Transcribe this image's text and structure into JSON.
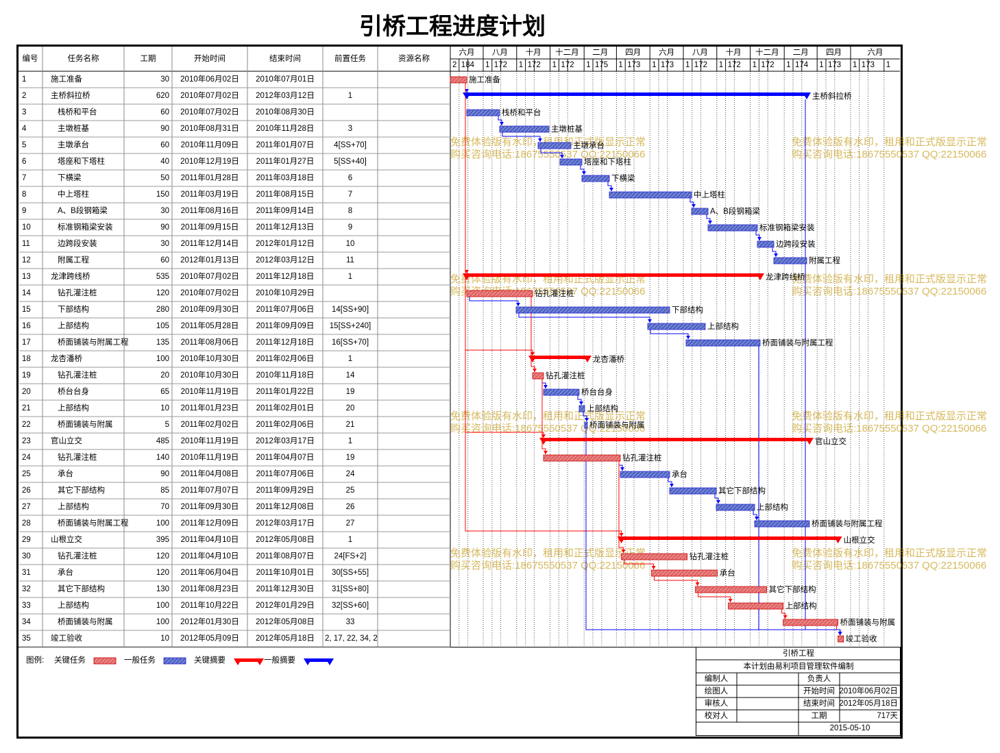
{
  "chart_data": {
    "type": "gantt",
    "title": "引桥工程进度计划",
    "columns": [
      "编号",
      "任务名称",
      "工期",
      "开始时间",
      "结束时间",
      "前置任务",
      "资源名称"
    ],
    "month_ticks": [
      {
        "value": "2010-06-02",
        "label": "六月"
      },
      {
        "value": "2010-08-01",
        "label": "八月"
      },
      {
        "value": "2010-10-01",
        "label": "十月"
      },
      {
        "value": "2010-12-01",
        "label": "十二月"
      },
      {
        "value": "2011-02-01",
        "label": "二月"
      },
      {
        "value": "2011-04-01",
        "label": "四月"
      },
      {
        "value": "2011-06-01",
        "label": "六月"
      },
      {
        "value": "2011-08-01",
        "label": "八月"
      },
      {
        "value": "2011-10-01",
        "label": "十月"
      },
      {
        "value": "2011-12-01",
        "label": "十二月"
      },
      {
        "value": "2012-02-01",
        "label": "二月"
      },
      {
        "value": "2012-04-01",
        "label": "四月"
      },
      {
        "value": "2012-06-01",
        "label": "六月"
      }
    ],
    "day_ticks": [
      {
        "value": "2010-06-02",
        "label": "2"
      },
      {
        "value": "2010-06-18",
        "label": "18"
      },
      {
        "value": "2010-07-04",
        "label": "4"
      },
      {
        "value": "2010-08-01",
        "label": "1"
      },
      {
        "value": "2010-08-17",
        "label": "17"
      },
      {
        "value": "2010-09-02",
        "label": "2"
      },
      {
        "value": "2010-10-01",
        "label": "1"
      },
      {
        "value": "2010-10-17",
        "label": "17"
      },
      {
        "value": "2010-11-02",
        "label": "2"
      },
      {
        "value": "2010-12-01",
        "label": "1"
      },
      {
        "value": "2010-12-17",
        "label": "17"
      },
      {
        "value": "2011-01-02",
        "label": "2"
      },
      {
        "value": "2011-02-01",
        "label": "1"
      },
      {
        "value": "2011-02-17",
        "label": "17"
      },
      {
        "value": "2011-03-05",
        "label": "5"
      },
      {
        "value": "2011-04-01",
        "label": "1"
      },
      {
        "value": "2011-04-17",
        "label": "17"
      },
      {
        "value": "2011-05-03",
        "label": "3"
      },
      {
        "value": "2011-06-01",
        "label": "1"
      },
      {
        "value": "2011-06-17",
        "label": "17"
      },
      {
        "value": "2011-07-03",
        "label": "3"
      },
      {
        "value": "2011-08-01",
        "label": "1"
      },
      {
        "value": "2011-08-17",
        "label": "17"
      },
      {
        "value": "2011-09-02",
        "label": "2"
      },
      {
        "value": "2011-10-01",
        "label": "1"
      },
      {
        "value": "2011-10-17",
        "label": "17"
      },
      {
        "value": "2011-11-02",
        "label": "2"
      },
      {
        "value": "2011-12-01",
        "label": "1"
      },
      {
        "value": "2011-12-17",
        "label": "17"
      },
      {
        "value": "2012-01-02",
        "label": "2"
      },
      {
        "value": "2012-02-01",
        "label": "1"
      },
      {
        "value": "2012-02-17",
        "label": "17"
      },
      {
        "value": "2012-03-04",
        "label": "4"
      },
      {
        "value": "2012-04-01",
        "label": "1"
      },
      {
        "value": "2012-04-17",
        "label": "17"
      },
      {
        "value": "2012-05-03",
        "label": "3"
      },
      {
        "value": "2012-06-01",
        "label": "1"
      },
      {
        "value": "2012-06-17",
        "label": "17"
      },
      {
        "value": "2012-07-03",
        "label": "3"
      },
      {
        "value": "2012-08-01",
        "label": "1"
      }
    ],
    "tasks": [
      {
        "id": 1,
        "name": "施工准备",
        "duration": 30,
        "start": "2010年06月02日",
        "end": "2010年07月01日",
        "critical": true,
        "summary": false,
        "level": 1
      },
      {
        "id": 2,
        "name": "主桥斜拉桥",
        "duration": 620,
        "start": "2010年07月02日",
        "end": "2012年03月12日",
        "pred": "1",
        "critical": false,
        "summary": true,
        "level": 1
      },
      {
        "id": 3,
        "name": "栈桥和平台",
        "duration": 60,
        "start": "2010年07月02日",
        "end": "2010年08月30日",
        "critical": false,
        "summary": false,
        "level": 2
      },
      {
        "id": 4,
        "name": "主墩桩基",
        "duration": 90,
        "start": "2010年08月31日",
        "end": "2010年11月28日",
        "pred": "3",
        "critical": false,
        "summary": false,
        "level": 2
      },
      {
        "id": 5,
        "name": "主墩承台",
        "duration": 60,
        "start": "2010年11月09日",
        "end": "2011年01月07日",
        "pred": "4[SS+70]",
        "critical": false,
        "summary": false,
        "level": 2
      },
      {
        "id": 6,
        "name": "塔座和下塔柱",
        "duration": 40,
        "start": "2010年12月19日",
        "end": "2011年01月27日",
        "pred": "5[SS+40]",
        "critical": false,
        "summary": false,
        "level": 2
      },
      {
        "id": 7,
        "name": "下横梁",
        "duration": 50,
        "start": "2011年01月28日",
        "end": "2011年03月18日",
        "pred": "6",
        "critical": false,
        "summary": false,
        "level": 2
      },
      {
        "id": 8,
        "name": "中上塔柱",
        "duration": 150,
        "start": "2011年03月19日",
        "end": "2011年08月15日",
        "pred": "7",
        "critical": false,
        "summary": false,
        "level": 2
      },
      {
        "id": 9,
        "name": "A、B段钢箱梁",
        "duration": 30,
        "start": "2011年08月16日",
        "end": "2011年09月14日",
        "pred": "8",
        "critical": false,
        "summary": false,
        "level": 2
      },
      {
        "id": 10,
        "name": "标准钢箱梁安装",
        "duration": 90,
        "start": "2011年09月15日",
        "end": "2011年12月13日",
        "pred": "9",
        "critical": false,
        "summary": false,
        "level": 2
      },
      {
        "id": 11,
        "name": "边跨段安装",
        "duration": 30,
        "start": "2011年12月14日",
        "end": "2012年01月12日",
        "pred": "10",
        "critical": false,
        "summary": false,
        "level": 2
      },
      {
        "id": 12,
        "name": "附属工程",
        "duration": 60,
        "start": "2012年01月13日",
        "end": "2012年03月12日",
        "pred": "11",
        "critical": false,
        "summary": false,
        "level": 2
      },
      {
        "id": 13,
        "name": "龙津跨线桥",
        "duration": 535,
        "start": "2010年07月02日",
        "end": "2011年12月18日",
        "pred": "1",
        "critical": true,
        "summary": true,
        "level": 1
      },
      {
        "id": 14,
        "name": "钻孔灌注桩",
        "duration": 120,
        "start": "2010年07月02日",
        "end": "2010年10月29日",
        "critical": true,
        "summary": false,
        "level": 2
      },
      {
        "id": 15,
        "name": "下部结构",
        "duration": 280,
        "start": "2010年09月30日",
        "end": "2011年07月06日",
        "pred": "14[SS+90]",
        "critical": false,
        "summary": false,
        "level": 2
      },
      {
        "id": 16,
        "name": "上部结构",
        "duration": 105,
        "start": "2011年05月28日",
        "end": "2011年09月09日",
        "pred": "15[SS+240]",
        "critical": false,
        "summary": false,
        "level": 2
      },
      {
        "id": 17,
        "name": "桥面铺装与附属工程",
        "duration": 135,
        "start": "2011年08月06日",
        "end": "2011年12月18日",
        "pred": "16[SS+70]",
        "critical": false,
        "summary": false,
        "level": 2
      },
      {
        "id": 18,
        "name": "龙杏潘桥",
        "duration": 100,
        "start": "2010年10月30日",
        "end": "2011年02月06日",
        "pred": "1",
        "critical": true,
        "summary": true,
        "level": 1
      },
      {
        "id": 19,
        "name": "钻孔灌注桩",
        "duration": 20,
        "start": "2010年10月30日",
        "end": "2010年11月18日",
        "pred": "14",
        "critical": true,
        "summary": false,
        "level": 2
      },
      {
        "id": 20,
        "name": "桥台台身",
        "duration": 65,
        "start": "2010年11月19日",
        "end": "2011年01月22日",
        "pred": "19",
        "critical": false,
        "summary": false,
        "level": 2
      },
      {
        "id": 21,
        "name": "上部结构",
        "duration": 10,
        "start": "2011年01月23日",
        "end": "2011年02月01日",
        "pred": "20",
        "critical": false,
        "summary": false,
        "level": 2
      },
      {
        "id": 22,
        "name": "桥面铺装与附属",
        "duration": 5,
        "start": "2011年02月02日",
        "end": "2011年02月06日",
        "pred": "21",
        "critical": false,
        "summary": false,
        "level": 2
      },
      {
        "id": 23,
        "name": "官山立交",
        "duration": 485,
        "start": "2010年11月19日",
        "end": "2012年03月17日",
        "pred": "1",
        "critical": true,
        "summary": true,
        "level": 1
      },
      {
        "id": 24,
        "name": "钻孔灌注桩",
        "duration": 140,
        "start": "2010年11月19日",
        "end": "2011年04月07日",
        "pred": "19",
        "critical": true,
        "summary": false,
        "level": 2
      },
      {
        "id": 25,
        "name": "承台",
        "duration": 90,
        "start": "2011年04月08日",
        "end": "2011年07月06日",
        "pred": "24",
        "critical": false,
        "summary": false,
        "level": 2
      },
      {
        "id": 26,
        "name": "其它下部结构",
        "duration": 85,
        "start": "2011年07月07日",
        "end": "2011年09月29日",
        "pred": "25",
        "critical": false,
        "summary": false,
        "level": 2
      },
      {
        "id": 27,
        "name": "上部结构",
        "duration": 70,
        "start": "2011年09月30日",
        "end": "2011年12月08日",
        "pred": "26",
        "critical": false,
        "summary": false,
        "level": 2
      },
      {
        "id": 28,
        "name": "桥面铺装与附属工程",
        "duration": 100,
        "start": "2011年12月09日",
        "end": "2012年03月17日",
        "pred": "27",
        "critical": false,
        "summary": false,
        "level": 2
      },
      {
        "id": 29,
        "name": "山根立交",
        "duration": 395,
        "start": "2011年04月10日",
        "end": "2012年05月08日",
        "pred": "1",
        "critical": true,
        "summary": true,
        "level": 1
      },
      {
        "id": 30,
        "name": "钻孔灌注桩",
        "duration": 120,
        "start": "2011年04月10日",
        "end": "2011年08月07日",
        "pred": "24[FS+2]",
        "critical": true,
        "summary": false,
        "level": 2
      },
      {
        "id": 31,
        "name": "承台",
        "duration": 120,
        "start": "2011年06月04日",
        "end": "2011年10月01日",
        "pred": "30[SS+55]",
        "critical": true,
        "summary": false,
        "level": 2
      },
      {
        "id": 32,
        "name": "其它下部结构",
        "duration": 130,
        "start": "2011年08月23日",
        "end": "2011年12月30日",
        "pred": "31[SS+80]",
        "critical": true,
        "summary": false,
        "level": 2
      },
      {
        "id": 33,
        "name": "上部结构",
        "duration": 100,
        "start": "2011年10月22日",
        "end": "2012年01月29日",
        "pred": "32[SS+60]",
        "critical": true,
        "summary": false,
        "level": 2
      },
      {
        "id": 34,
        "name": "桥面铺装与附属",
        "duration": 100,
        "start": "2012年01月30日",
        "end": "2012年05月08日",
        "pred": "33",
        "critical": true,
        "summary": false,
        "level": 2
      },
      {
        "id": 35,
        "name": "竣工验收",
        "duration": 10,
        "start": "2012年05月09日",
        "end": "2012年05月18日",
        "pred": "2, 17, 22, 34, 2",
        "critical": true,
        "summary": false,
        "level": 1
      }
    ],
    "legend_label": "图例:",
    "legend": [
      {
        "name": "关键任务",
        "critical": true,
        "summary": false
      },
      {
        "name": "一般任务",
        "critical": false,
        "summary": false
      },
      {
        "name": "关键摘要",
        "critical": true,
        "summary": true
      },
      {
        "name": "一般摘要",
        "critical": false,
        "summary": true
      }
    ],
    "watermark": [
      "免费体验版有水印，租用和正式版显示正常",
      "购买咨询电话:18675550537 QQ:22150066"
    ],
    "footer": {
      "project": "引桥工程",
      "note": "本计划由易利项目管理软件编制",
      "signoff": [
        "编制人",
        "绘图人",
        "审核人",
        "校对人"
      ],
      "info": [
        {
          "label": "负责人"
        },
        {
          "label": "开始时间",
          "value": "2010年06月02日"
        },
        {
          "label": "结束时间",
          "value": "2012年05月18日"
        },
        {
          "label": "工期",
          "value": "717天"
        }
      ],
      "date": "2015-05-10"
    }
  }
}
